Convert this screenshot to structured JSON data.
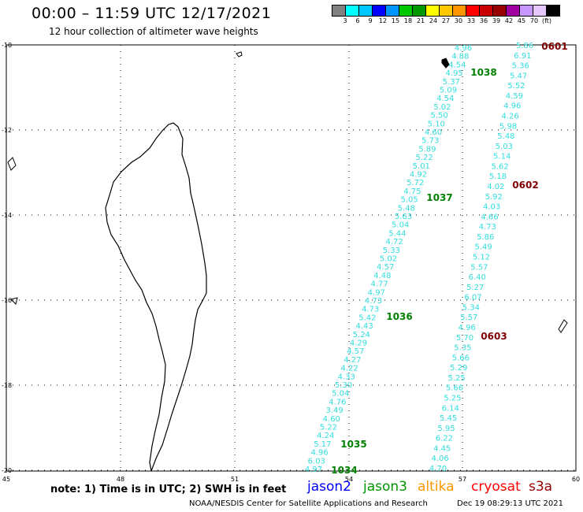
{
  "title": "00:00 – 11:59 UTC 12/17/2021",
  "subtitle": "12 hour collection of altimeter wave heights",
  "colorbar": {
    "colors": [
      "#808080",
      "#00ffff",
      "#00c8ff",
      "#0000ff",
      "#0096ff",
      "#00c800",
      "#009600",
      "#ffff00",
      "#ffc800",
      "#ff9600",
      "#ff0000",
      "#c80000",
      "#960000",
      "#a000a0",
      "#c896ff",
      "#e6c8ff",
      "#000000"
    ],
    "labels": [
      "3",
      "6",
      "9",
      "12",
      "15",
      "18",
      "21",
      "24",
      "27",
      "30",
      "33",
      "36",
      "39",
      "42",
      "45",
      "70",
      "(ft)"
    ]
  },
  "axes": {
    "lon_ticks": [
      "45",
      "48",
      "51",
      "54",
      "57",
      "60"
    ],
    "lat_ticks": [
      "-10",
      "-12",
      "-14",
      "-16",
      "-18",
      "-20"
    ]
  },
  "passes": [
    {
      "label": "1038",
      "color": "#008000"
    },
    {
      "label": "1037",
      "color": "#008000"
    },
    {
      "label": "1036",
      "color": "#008000"
    },
    {
      "label": "1035",
      "color": "#008000"
    },
    {
      "label": "1034",
      "color": "#008000"
    },
    {
      "label": "0601",
      "color": "#800000"
    },
    {
      "label": "0602",
      "color": "#800000"
    },
    {
      "label": "0603",
      "color": "#800000"
    }
  ],
  "track_a_values": [
    "4.96",
    "4.88",
    "4.54",
    "4.95",
    "5.37",
    "5.09",
    "4.54",
    "5.02",
    "5.50",
    "5.10",
    "4.60",
    "5.73",
    "5.89",
    "5.22",
    "5.01",
    "4.92",
    "5.72",
    "4.75",
    "5.05",
    "5.48",
    "5.63",
    "5.04",
    "5.44",
    "4.72",
    "5.33",
    "5.02",
    "4.57",
    "4.48",
    "4.77",
    "4.97",
    "4.73",
    "4.73",
    "5.42",
    "4.43",
    "5.24",
    "4.29",
    "4.57",
    "4.27",
    "4.22",
    "4.33",
    "5.30",
    "5.04",
    "4.76",
    "3.49",
    "4.60",
    "5.22",
    "4.24",
    "5.17",
    "4.96",
    "6.03",
    "4.97"
  ],
  "track_b_values": [
    "5.86",
    "6.91",
    "5.36",
    "5.47",
    "5.52",
    "4.59",
    "4.96",
    "4.26",
    "5.98",
    "5.48",
    "5.03",
    "5.14",
    "5.62",
    "5.18",
    "4.02",
    "5.92",
    "4.03",
    "4.66",
    "4.73",
    "5.86",
    "5.49",
    "5.12",
    "5.57",
    "6.40",
    "5.27",
    "6.07",
    "5.34",
    "5.57",
    "4.96",
    "5.70",
    "5.35",
    "5.66",
    "5.29",
    "5.25",
    "5.66",
    "5.25",
    "6.14",
    "5.45",
    "5.95",
    "6.22",
    "4.45",
    "4.06",
    "4.70"
  ],
  "note": "note: 1) Time is in UTC; 2) SWH is in feet",
  "legend": [
    {
      "label": "jason2",
      "color": "#0000ff"
    },
    {
      "label": "jason3",
      "color": "#009600"
    },
    {
      "label": "altika",
      "color": "#ff9600"
    },
    {
      "label": "cryosat",
      "color": "#ff0000"
    },
    {
      "label": "s3a",
      "color": "#960000"
    }
  ],
  "footer": "NOAA/NESDIS Center for Satellite Applications and Research",
  "timestamp": "Dec 19 08:29:13 UTC 2021"
}
